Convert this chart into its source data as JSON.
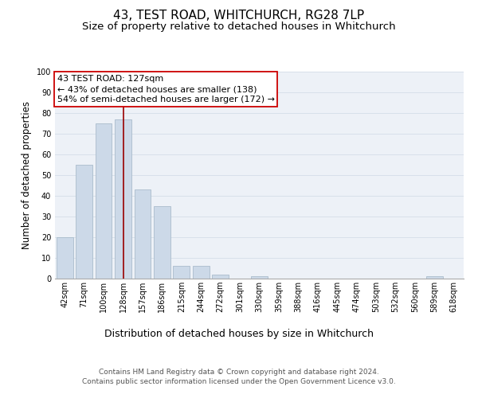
{
  "title": "43, TEST ROAD, WHITCHURCH, RG28 7LP",
  "subtitle": "Size of property relative to detached houses in Whitchurch",
  "xlabel": "Distribution of detached houses by size in Whitchurch",
  "ylabel": "Number of detached properties",
  "categories": [
    "42sqm",
    "71sqm",
    "100sqm",
    "128sqm",
    "157sqm",
    "186sqm",
    "215sqm",
    "244sqm",
    "272sqm",
    "301sqm",
    "330sqm",
    "359sqm",
    "388sqm",
    "416sqm",
    "445sqm",
    "474sqm",
    "503sqm",
    "532sqm",
    "560sqm",
    "589sqm",
    "618sqm"
  ],
  "values": [
    20,
    55,
    75,
    77,
    43,
    35,
    6,
    6,
    2,
    0,
    1,
    0,
    0,
    0,
    0,
    0,
    0,
    0,
    0,
    1,
    0
  ],
  "bar_color": "#ccd9e8",
  "bar_edge_color": "#aabccc",
  "grid_color": "#d8e0ea",
  "background_color": "#edf1f7",
  "vline_x_index": 3,
  "vline_color": "#990000",
  "annotation_box_text": "43 TEST ROAD: 127sqm\n← 43% of detached houses are smaller (138)\n54% of semi-detached houses are larger (172) →",
  "annotation_box_color": "#cc0000",
  "footnote": "Contains HM Land Registry data © Crown copyright and database right 2024.\nContains public sector information licensed under the Open Government Licence v3.0.",
  "ylim": [
    0,
    100
  ],
  "yticks": [
    0,
    10,
    20,
    30,
    40,
    50,
    60,
    70,
    80,
    90,
    100
  ],
  "title_fontsize": 11,
  "subtitle_fontsize": 9.5,
  "ylabel_fontsize": 8.5,
  "xlabel_fontsize": 9,
  "tick_fontsize": 7,
  "annotation_fontsize": 8,
  "footnote_fontsize": 6.5
}
